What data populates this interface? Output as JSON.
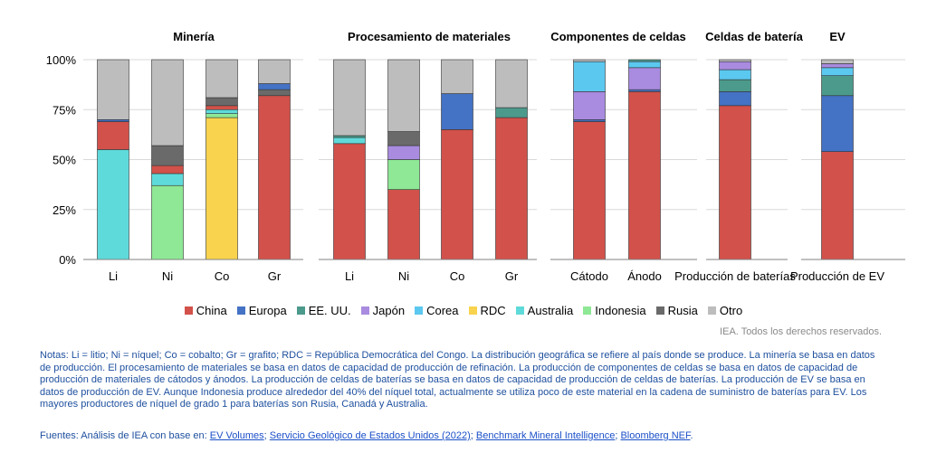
{
  "chart_data": {
    "type": "bar",
    "stacked": true,
    "yticks": [
      "0%",
      "25%",
      "50%",
      "75%",
      "100%"
    ],
    "ylim": [
      0,
      100
    ],
    "grid": true,
    "legend_position": "bottom",
    "colors": {
      "China": "#d2514a",
      "Europa": "#4472c4",
      "EE. UU.": "#4c9a8c",
      "Japón": "#a98be0",
      "Corea": "#5bc8ef",
      "RDC": "#f9d34d",
      "Australia": "#5fdada",
      "Indonesia": "#8ee895",
      "Rusia": "#6a6a6a",
      "Otro": "#bdbdbd"
    },
    "legend": [
      "China",
      "Europa",
      "EE. UU.",
      "Japón",
      "Corea",
      "RDC",
      "Australia",
      "Indonesia",
      "Rusia",
      "Otro"
    ],
    "groups": [
      {
        "title": "Minería",
        "bars": [
          {
            "label": "Li",
            "segments": [
              {
                "name": "Australia",
                "value": 55
              },
              {
                "name": "China",
                "value": 14
              },
              {
                "name": "Europa",
                "value": 1
              },
              {
                "name": "Otro",
                "value": 30
              }
            ]
          },
          {
            "label": "Ni",
            "segments": [
              {
                "name": "Indonesia",
                "value": 37
              },
              {
                "name": "Australia",
                "value": 6
              },
              {
                "name": "China",
                "value": 4
              },
              {
                "name": "Rusia",
                "value": 10
              },
              {
                "name": "Otro",
                "value": 43
              }
            ]
          },
          {
            "label": "Co",
            "segments": [
              {
                "name": "RDC",
                "value": 71
              },
              {
                "name": "Indonesia",
                "value": 2
              },
              {
                "name": "Australia",
                "value": 2
              },
              {
                "name": "China",
                "value": 2
              },
              {
                "name": "Rusia",
                "value": 4
              },
              {
                "name": "Otro",
                "value": 19
              }
            ]
          },
          {
            "label": "Gr",
            "segments": [
              {
                "name": "China",
                "value": 82
              },
              {
                "name": "Rusia",
                "value": 3
              },
              {
                "name": "Europa",
                "value": 3
              },
              {
                "name": "Otro",
                "value": 12
              }
            ]
          }
        ]
      },
      {
        "title": "Procesamiento de materiales",
        "bars": [
          {
            "label": "Li",
            "segments": [
              {
                "name": "China",
                "value": 58
              },
              {
                "name": "Australia",
                "value": 3
              },
              {
                "name": "EE. UU.",
                "value": 1
              },
              {
                "name": "Otro",
                "value": 38
              }
            ]
          },
          {
            "label": "Ni",
            "segments": [
              {
                "name": "China",
                "value": 35
              },
              {
                "name": "Indonesia",
                "value": 15
              },
              {
                "name": "Japón",
                "value": 7
              },
              {
                "name": "Rusia",
                "value": 7
              },
              {
                "name": "Otro",
                "value": 36
              }
            ]
          },
          {
            "label": "Co",
            "segments": [
              {
                "name": "China",
                "value": 65
              },
              {
                "name": "Europa",
                "value": 18
              },
              {
                "name": "Otro",
                "value": 17
              }
            ]
          },
          {
            "label": "Gr",
            "segments": [
              {
                "name": "China",
                "value": 71
              },
              {
                "name": "EE. UU.",
                "value": 5
              },
              {
                "name": "Otro",
                "value": 24
              }
            ]
          }
        ]
      },
      {
        "title": "Componentes de celdas",
        "bars": [
          {
            "label": "Cátodo",
            "segments": [
              {
                "name": "China",
                "value": 69
              },
              {
                "name": "Europa",
                "value": 1
              },
              {
                "name": "Japón",
                "value": 14
              },
              {
                "name": "Corea",
                "value": 15
              },
              {
                "name": "Otro",
                "value": 1
              }
            ]
          },
          {
            "label": "Ánodo",
            "segments": [
              {
                "name": "China",
                "value": 84
              },
              {
                "name": "Europa",
                "value": 1
              },
              {
                "name": "Japón",
                "value": 11
              },
              {
                "name": "Corea",
                "value": 3
              },
              {
                "name": "EE. UU.",
                "value": 1
              }
            ]
          }
        ]
      },
      {
        "title": "Celdas de batería",
        "bars": [
          {
            "label": "Producción de baterías",
            "segments": [
              {
                "name": "China",
                "value": 77
              },
              {
                "name": "Europa",
                "value": 7
              },
              {
                "name": "EE. UU.",
                "value": 6
              },
              {
                "name": "Corea",
                "value": 5
              },
              {
                "name": "Japón",
                "value": 4
              },
              {
                "name": "Otro",
                "value": 1
              }
            ]
          }
        ]
      },
      {
        "title": "EV",
        "bars": [
          {
            "label": "Producción de EV",
            "segments": [
              {
                "name": "China",
                "value": 54
              },
              {
                "name": "Europa",
                "value": 28
              },
              {
                "name": "EE. UU.",
                "value": 10
              },
              {
                "name": "Corea",
                "value": 4
              },
              {
                "name": "Japón",
                "value": 2
              },
              {
                "name": "Otro",
                "value": 2
              }
            ]
          }
        ]
      }
    ]
  },
  "credit": "IEA. Todos los derechos reservados.",
  "notes": "Notas: Li = litio; Ni = níquel; Co = cobalto; Gr = grafito; RDC = República Democrática del Congo. La distribución geográfica se refiere al país donde se produce. La minería se basa en datos de producción. El procesamiento de materiales se basa en datos de capacidad de producción de refinación. La producción de componentes de celdas se basa en datos de capacidad de producción de materiales de cátodos y ánodos. La producción de celdas de baterías se basa en datos de capacidad de producción de celdas de baterías. La producción de EV se basa en datos de producción de EV. Aunque Indonesia produce alrededor del 40% del níquel total, actualmente se utiliza poco de este material en la cadena de suministro de baterías para EV. Los mayores productores de níquel de grado 1 para baterías son Rusia, Canadá y Australia.",
  "sources": {
    "prefix": "Fuentes: Análisis de IEA con base en: ",
    "links": [
      "EV Volumes",
      "Servicio Geológico de Estados Unidos (2022)",
      "Benchmark Mineral Intelligence",
      "Bloomberg NEF"
    ],
    "separators": [
      "; ",
      "; ",
      "; ",
      "."
    ]
  }
}
